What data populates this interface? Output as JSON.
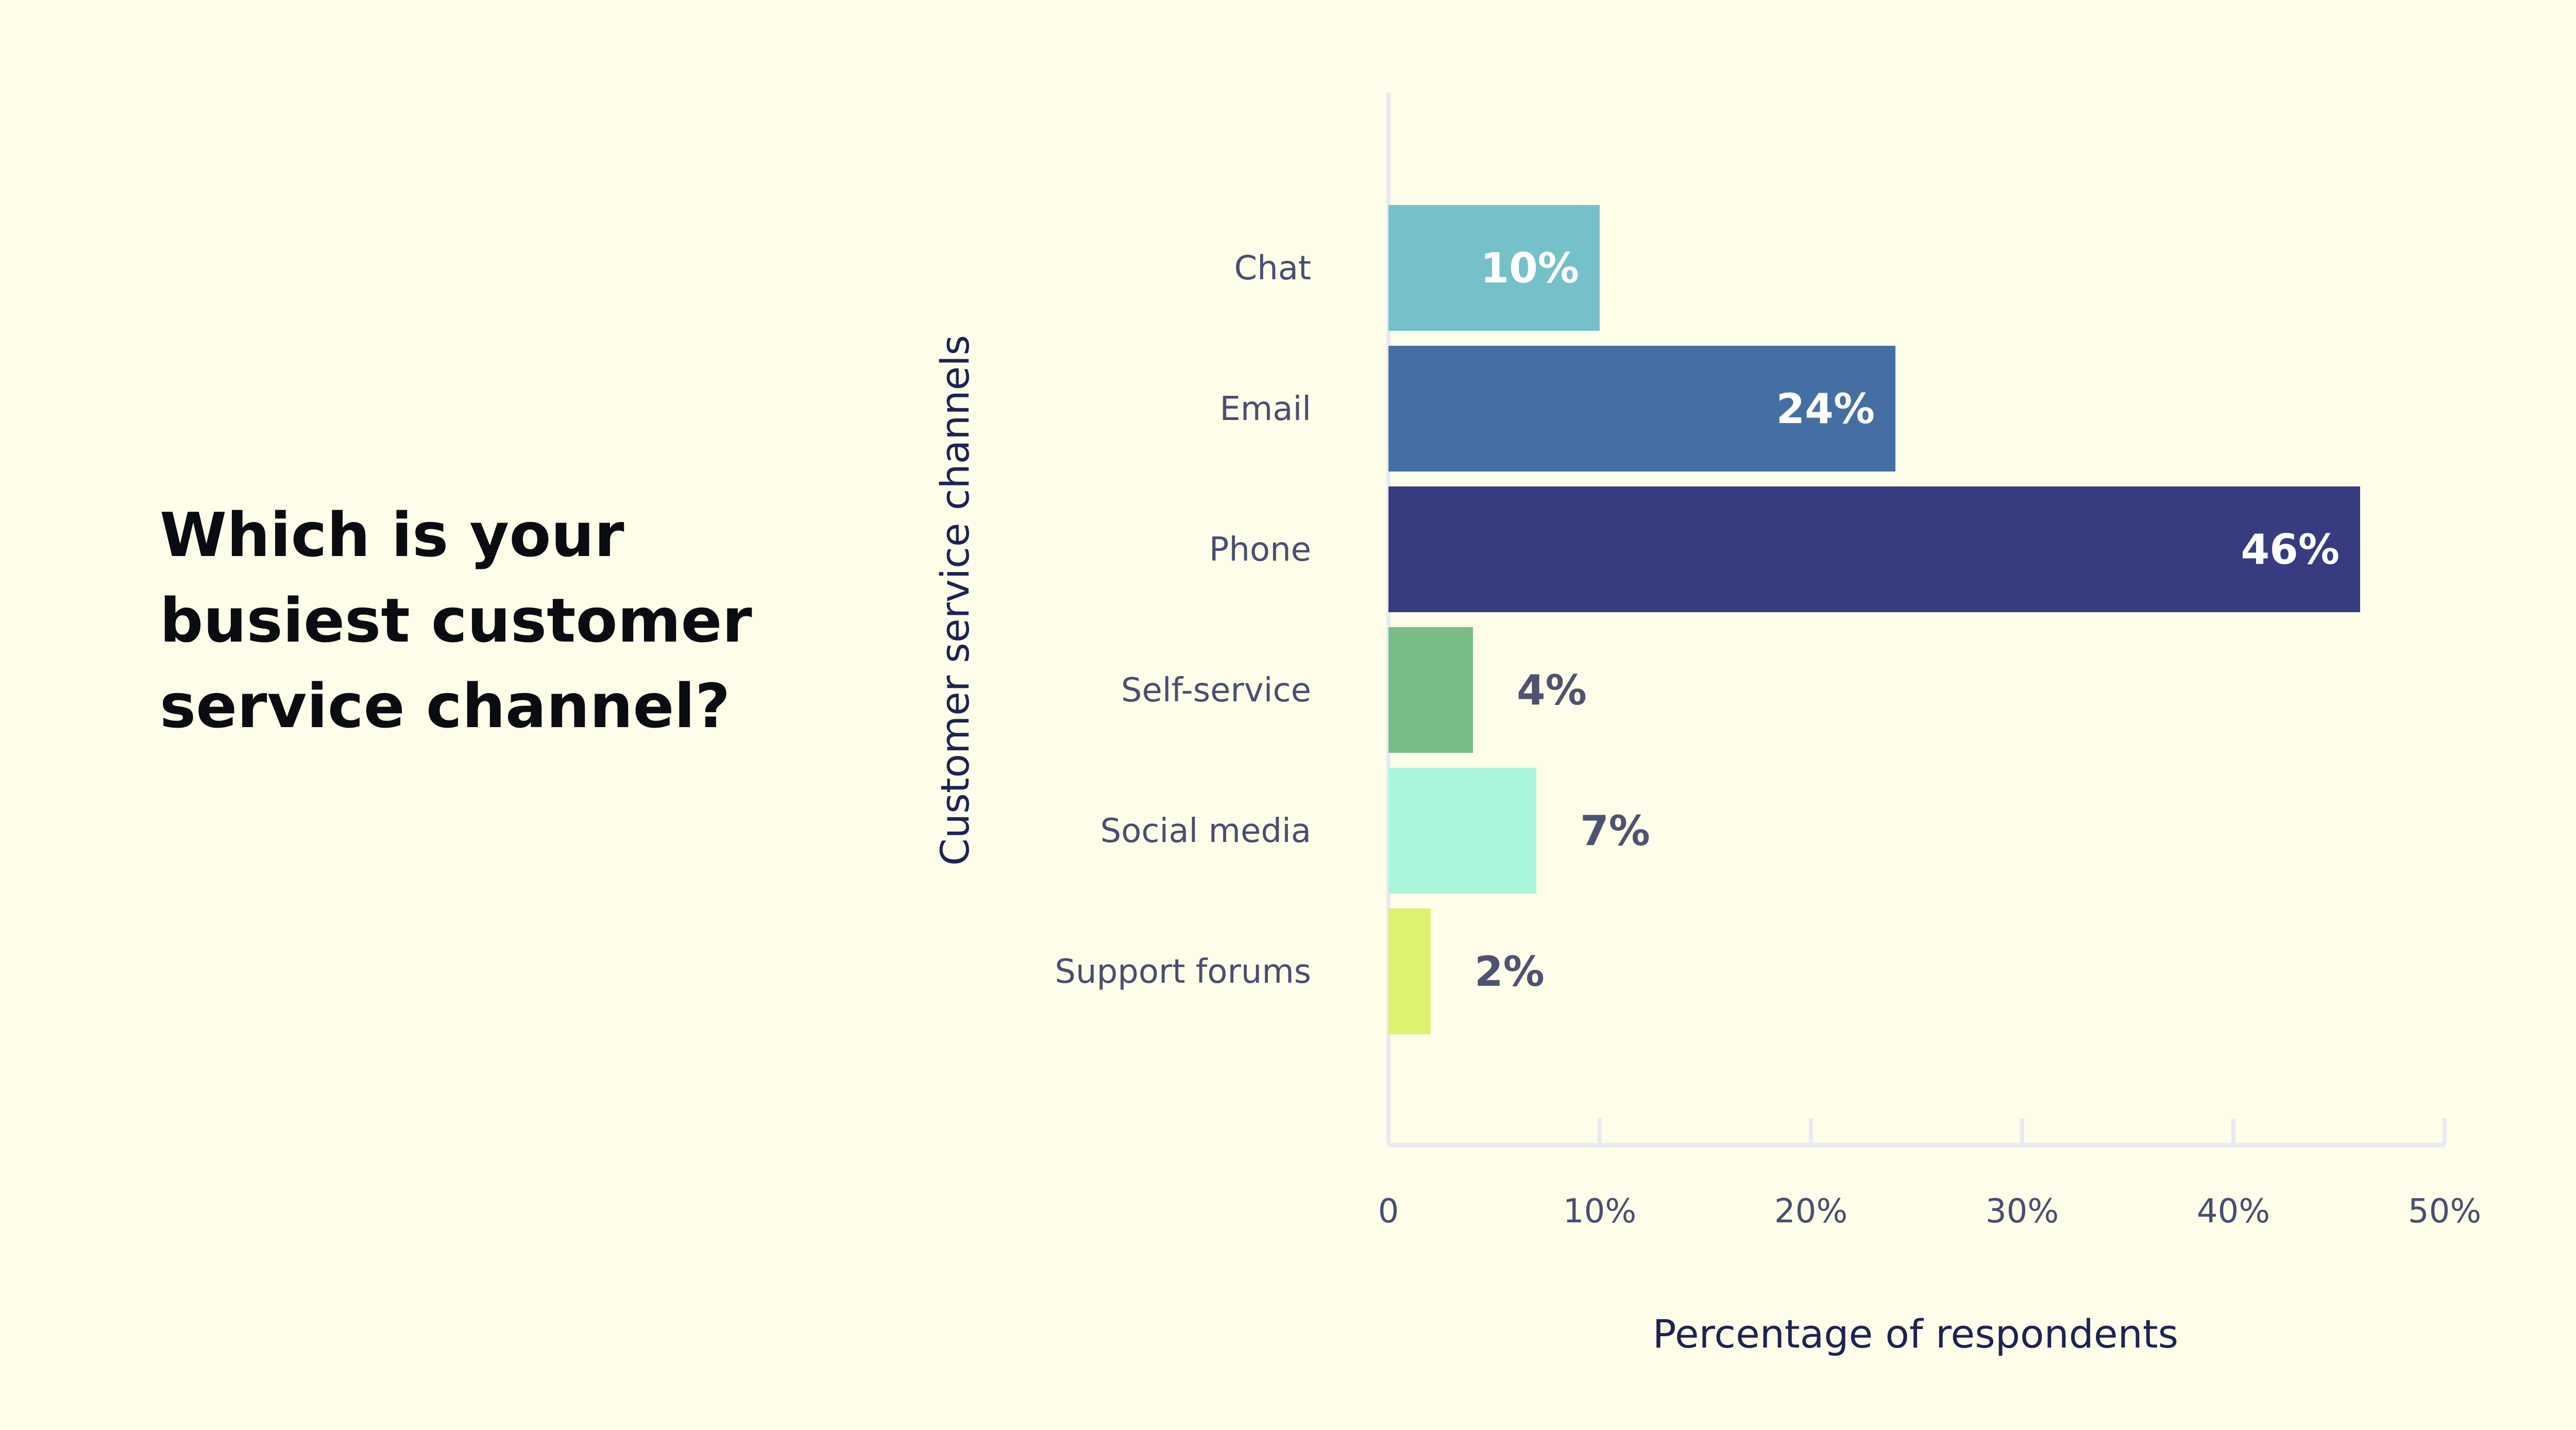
{
  "question": {
    "line1": "Which is your",
    "line2": "busiest customer",
    "line3": "service channel?"
  },
  "chart_data": {
    "type": "bar",
    "orientation": "horizontal",
    "title": "",
    "xlabel": "Percentage of respondents",
    "ylabel": "Customer service channels",
    "xlim": [
      0,
      50
    ],
    "x_ticks": [
      "0",
      "10%",
      "20%",
      "30%",
      "40%",
      "50%"
    ],
    "categories": [
      "Chat",
      "Email",
      "Phone",
      "Self-service",
      "Social media",
      "Support forums"
    ],
    "values": [
      10,
      24,
      46,
      4,
      7,
      2
    ],
    "value_labels": [
      "10%",
      "24%",
      "46%",
      "4%",
      "7%",
      "2%"
    ],
    "colors": [
      "#76c1c9",
      "#456fa2",
      "#373b80",
      "#78bd87",
      "#a8f7db",
      "#ddf26e"
    ],
    "grid": false,
    "legend": "none"
  }
}
